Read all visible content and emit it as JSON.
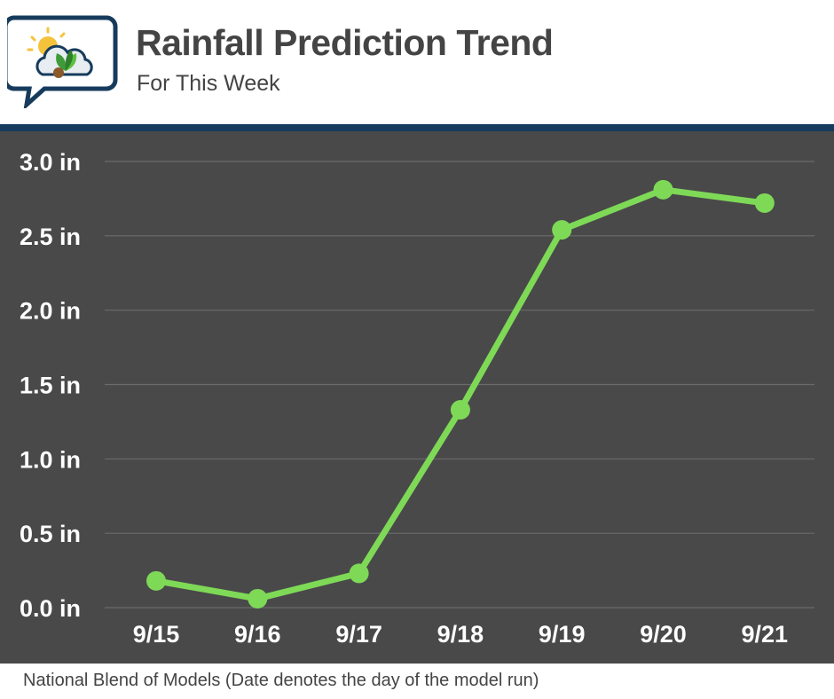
{
  "header": {
    "title": "Rainfall Prediction Trend",
    "subtitle": "For This Week"
  },
  "footer": {
    "source": "National Blend of Models (Date denotes the day of the model run)"
  },
  "colors": {
    "background_plot": "#494949",
    "gridline": "#6b6b6b",
    "series_line": "#7ed957",
    "divider": "#163b5c",
    "text_dark": "#444444",
    "text_light": "#ffffff"
  },
  "icons": {
    "logo": "sun-cloud-leaf-speech-bubble-icon"
  },
  "chart_data": {
    "type": "line",
    "title": "Rainfall Prediction Trend",
    "subtitle": "For This Week",
    "xlabel": "",
    "ylabel": "",
    "categories": [
      "9/15",
      "9/16",
      "9/17",
      "9/18",
      "9/19",
      "9/20",
      "9/21"
    ],
    "series": [
      {
        "values": [
          0.18,
          0.06,
          0.23,
          1.33,
          2.54,
          2.81,
          2.72
        ]
      }
    ],
    "ylim": [
      0,
      3.0
    ],
    "yticks": [
      {
        "value": 0.0,
        "label": "0.0 in"
      },
      {
        "value": 0.5,
        "label": "0.5 in"
      },
      {
        "value": 1.0,
        "label": "1.0 in"
      },
      {
        "value": 1.5,
        "label": "1.5 in"
      },
      {
        "value": 2.0,
        "label": "2.0 in"
      },
      {
        "value": 2.5,
        "label": "2.5 in"
      },
      {
        "value": 3.0,
        "label": "3.0 in"
      }
    ],
    "grid": true,
    "legend": "none"
  }
}
